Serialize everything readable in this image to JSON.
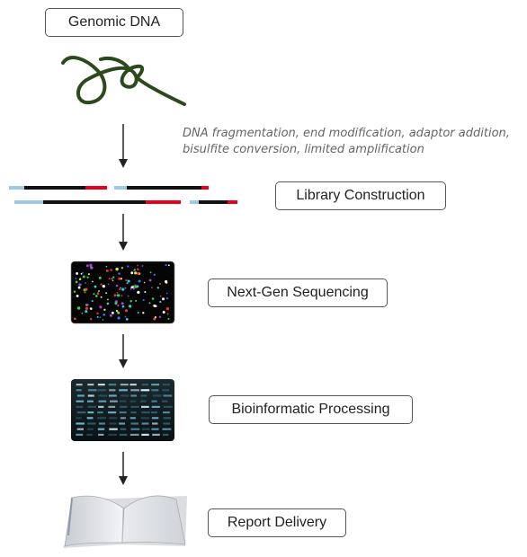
{
  "steps": {
    "genomic_dna": "Genomic DNA",
    "library_construction": "Library Construction",
    "next_gen_sequencing": "Next-Gen Sequencing",
    "bioinformatic_processing": "Bioinformatic Processing",
    "report_delivery": "Report Delivery"
  },
  "note": {
    "line1": "DNA fragmentation, end modification, adaptor addition,",
    "line2": "bisulfite conversion, limited amplification"
  },
  "colors": {
    "dna_strand": "#2a4a1c",
    "fragment_body": "#111111",
    "adaptor_left": "#9ecbe2",
    "adaptor_right": "#e8001c",
    "arrow": "#222222"
  },
  "icons": {
    "dna": "dna-strand-icon",
    "fragments": "library-fragments-icon",
    "sequencing": "sequencing-flowcell-icon",
    "bioinformatics": "data-screen-icon",
    "report": "open-book-icon"
  }
}
